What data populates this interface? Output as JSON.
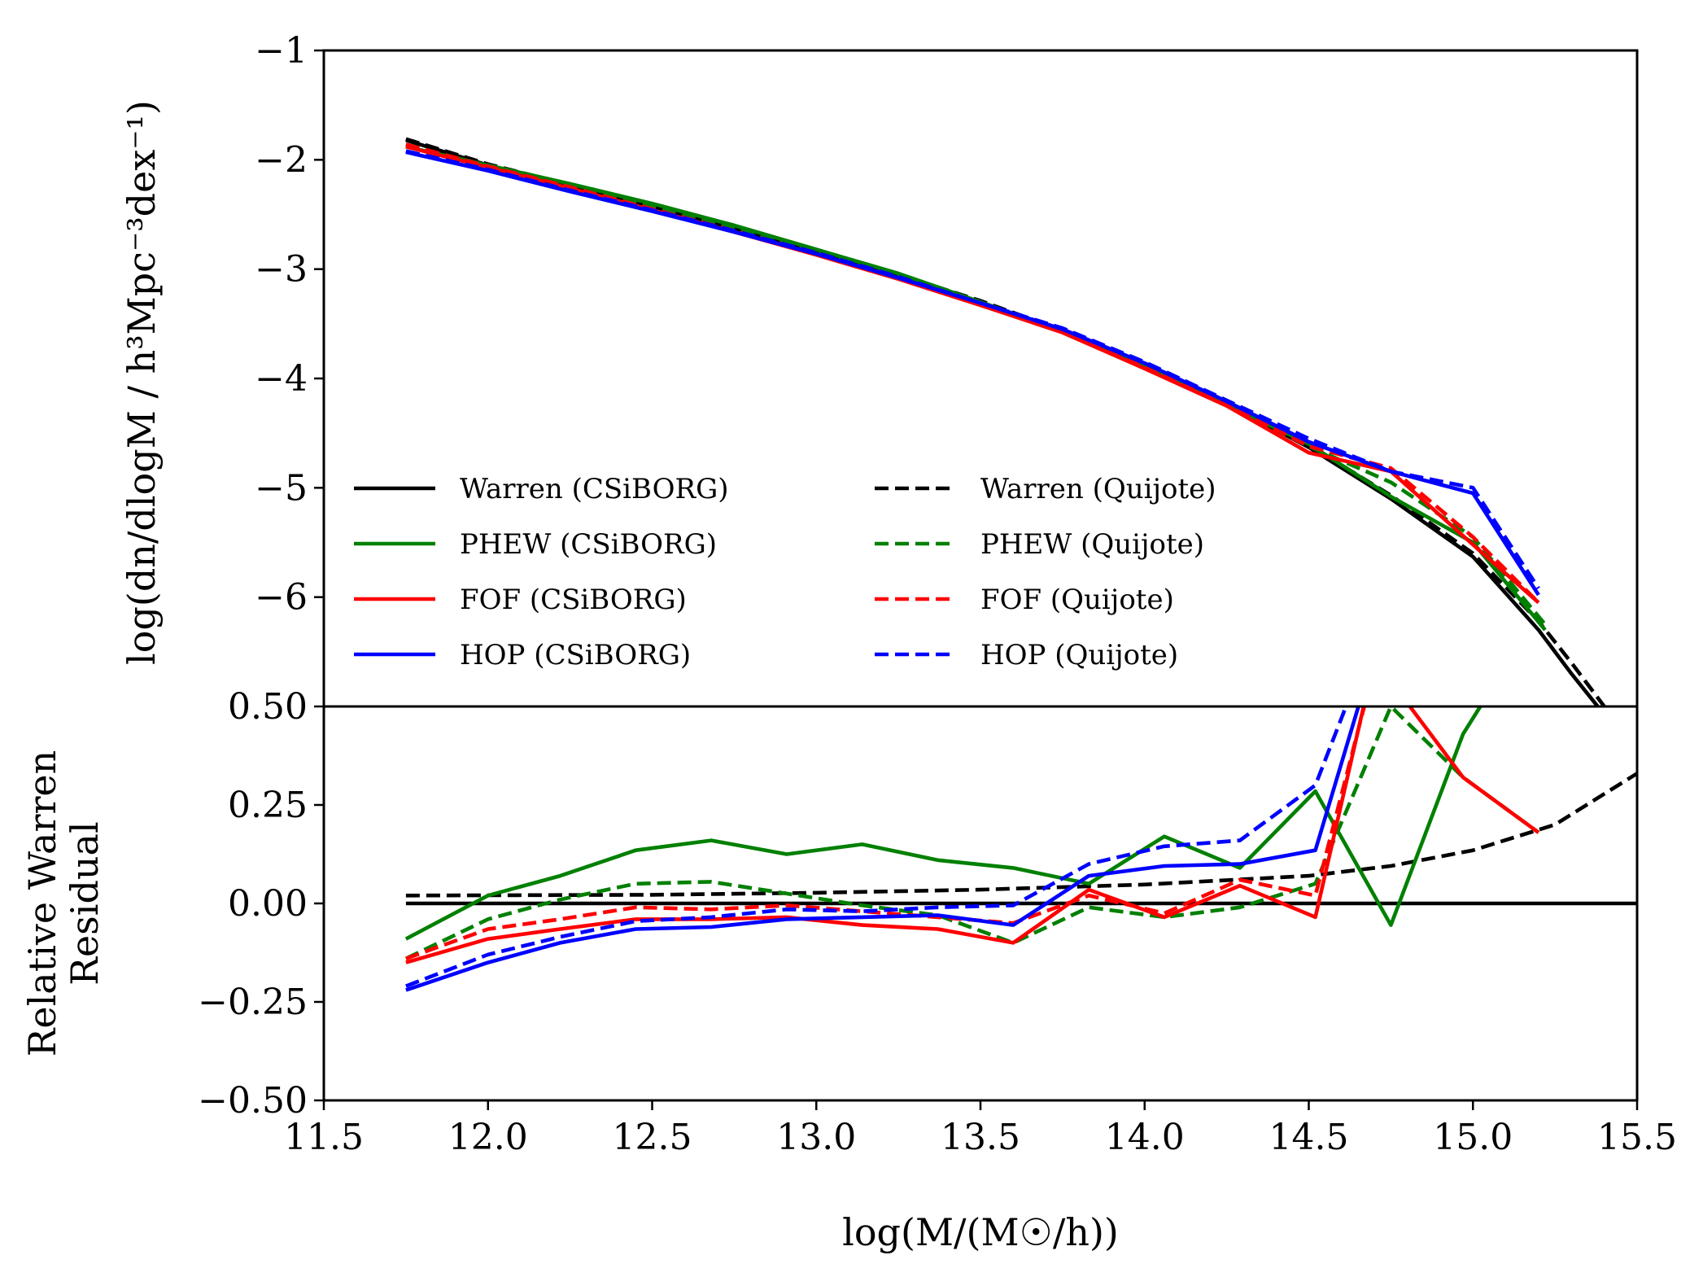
{
  "chart_data": [
    {
      "type": "line",
      "panel": "top",
      "title": "",
      "xlabel": "",
      "ylabel": "log(dn/dlogM / h³Mpc⁻³dex⁻¹)",
      "xlim": [
        11.5,
        15.5
      ],
      "ylim": [
        -7,
        -1
      ],
      "yticks": [
        -6,
        -5,
        -4,
        -3,
        -2,
        -1
      ],
      "ytick_labels": [
        "−6",
        "−5",
        "−4",
        "−3",
        "−2",
        "−1"
      ],
      "legend_position": "lower-left",
      "series": [
        {
          "name": "Warren (CSiBORG)",
          "color": "#000000",
          "dash": "solid",
          "x": [
            11.75,
            12.0,
            12.25,
            12.5,
            12.75,
            13.0,
            13.25,
            13.5,
            13.75,
            14.0,
            14.25,
            14.5,
            14.75,
            15.0,
            15.2,
            15.3,
            15.38
          ],
          "y": [
            -1.82,
            -2.05,
            -2.24,
            -2.43,
            -2.63,
            -2.84,
            -3.06,
            -3.3,
            -3.57,
            -3.88,
            -4.23,
            -4.63,
            -5.1,
            -5.63,
            -6.3,
            -6.7,
            -7.0
          ]
        },
        {
          "name": "Warren (Quijote)",
          "color": "#000000",
          "dash": "dashed",
          "x": [
            11.75,
            12.0,
            12.25,
            12.5,
            12.75,
            13.0,
            13.25,
            13.5,
            13.75,
            14.0,
            14.25,
            14.5,
            14.75,
            15.0,
            15.2,
            15.3,
            15.4
          ],
          "y": [
            -1.81,
            -2.04,
            -2.23,
            -2.42,
            -2.62,
            -2.83,
            -3.05,
            -3.29,
            -3.56,
            -3.87,
            -4.22,
            -4.61,
            -5.07,
            -5.6,
            -6.22,
            -6.6,
            -7.0
          ]
        },
        {
          "name": "PHEW (CSiBORG)",
          "color": "#008000",
          "dash": "solid",
          "x": [
            11.75,
            12.0,
            12.25,
            12.5,
            12.75,
            13.0,
            13.25,
            13.5,
            13.75,
            14.0,
            14.25,
            14.5,
            14.75,
            15.0,
            15.22
          ],
          "y": [
            -1.88,
            -2.05,
            -2.22,
            -2.4,
            -2.6,
            -2.82,
            -3.04,
            -3.3,
            -3.57,
            -3.88,
            -4.24,
            -4.6,
            -5.08,
            -5.5,
            -6.3
          ]
        },
        {
          "name": "PHEW (Quijote)",
          "color": "#008000",
          "dash": "dashed",
          "x": [
            11.75,
            12.0,
            12.25,
            12.5,
            12.75,
            13.0,
            13.25,
            13.5,
            13.75,
            14.0,
            14.25,
            14.5,
            14.75,
            15.0,
            15.22
          ],
          "y": [
            -1.86,
            -2.06,
            -2.24,
            -2.42,
            -2.62,
            -2.84,
            -3.06,
            -3.32,
            -3.57,
            -3.89,
            -4.24,
            -4.62,
            -4.95,
            -5.45,
            -6.25
          ]
        },
        {
          "name": "FOF (CSiBORG)",
          "color": "#ff0000",
          "dash": "solid",
          "x": [
            11.75,
            12.0,
            12.25,
            12.5,
            12.75,
            13.0,
            13.25,
            13.5,
            13.75,
            14.0,
            14.25,
            14.5,
            14.75,
            15.0,
            15.2
          ],
          "y": [
            -1.88,
            -2.07,
            -2.26,
            -2.46,
            -2.66,
            -2.87,
            -3.09,
            -3.33,
            -3.58,
            -3.91,
            -4.25,
            -4.68,
            -4.85,
            -5.52,
            -6.05
          ]
        },
        {
          "name": "FOF (Quijote)",
          "color": "#ff0000",
          "dash": "dashed",
          "x": [
            11.75,
            12.0,
            12.25,
            12.5,
            12.75,
            13.0,
            13.25,
            13.5,
            13.75,
            14.0,
            14.25,
            14.5,
            14.75,
            15.0,
            15.2
          ],
          "y": [
            -1.86,
            -2.06,
            -2.25,
            -2.45,
            -2.65,
            -2.86,
            -3.08,
            -3.33,
            -3.57,
            -3.9,
            -4.24,
            -4.62,
            -4.82,
            -5.45,
            -6.05
          ]
        },
        {
          "name": "HOP (CSiBORG)",
          "color": "#0000ff",
          "dash": "solid",
          "x": [
            11.75,
            12.0,
            12.25,
            12.5,
            12.75,
            13.0,
            13.25,
            13.5,
            13.75,
            14.0,
            14.25,
            14.5,
            14.75,
            15.0,
            15.2
          ],
          "y": [
            -1.93,
            -2.1,
            -2.29,
            -2.47,
            -2.66,
            -2.86,
            -3.08,
            -3.31,
            -3.55,
            -3.86,
            -4.21,
            -4.58,
            -4.85,
            -5.05,
            -5.98
          ]
        },
        {
          "name": "HOP (Quijote)",
          "color": "#0000ff",
          "dash": "dashed",
          "x": [
            11.75,
            12.0,
            12.25,
            12.5,
            12.75,
            13.0,
            13.25,
            13.5,
            13.75,
            14.0,
            14.25,
            14.5,
            14.75,
            15.0,
            15.2
          ],
          "y": [
            -1.92,
            -2.09,
            -2.28,
            -2.46,
            -2.65,
            -2.85,
            -3.07,
            -3.31,
            -3.54,
            -3.85,
            -4.2,
            -4.55,
            -4.85,
            -5.0,
            -5.92
          ]
        }
      ]
    },
    {
      "type": "line",
      "panel": "bottom",
      "title": "",
      "xlabel": "log(M/(M☉/h))",
      "ylabel": [
        "Relative Warren",
        "Residual"
      ],
      "xlim": [
        11.5,
        15.5
      ],
      "ylim": [
        -0.5,
        0.5
      ],
      "xticks": [
        11.5,
        12.0,
        12.5,
        13.0,
        13.5,
        14.0,
        14.5,
        15.0,
        15.5
      ],
      "xtick_labels": [
        "11.5",
        "12.0",
        "12.5",
        "13.0",
        "13.5",
        "14.0",
        "14.5",
        "15.0",
        "15.5"
      ],
      "yticks": [
        -0.5,
        -0.25,
        0.0,
        0.25,
        0.5
      ],
      "ytick_labels": [
        "−0.50",
        "−0.25",
        "0.00",
        "0.25",
        "0.50"
      ],
      "series": [
        {
          "name": "Warren (CSiBORG)",
          "color": "#000000",
          "dash": "solid",
          "x": [
            11.75,
            15.5
          ],
          "y": [
            0.0,
            0.0
          ]
        },
        {
          "name": "Warren (Quijote)",
          "color": "#000000",
          "dash": "dashed",
          "x": [
            11.75,
            12.5,
            13.0,
            13.5,
            14.0,
            14.5,
            14.75,
            15.0,
            15.25,
            15.5
          ],
          "y": [
            0.02,
            0.022,
            0.027,
            0.035,
            0.048,
            0.07,
            0.095,
            0.135,
            0.2,
            0.33
          ]
        },
        {
          "name": "PHEW (CSiBORG)",
          "color": "#008000",
          "dash": "solid",
          "x": [
            11.75,
            12.0,
            12.22,
            12.45,
            12.68,
            12.91,
            13.14,
            13.37,
            13.6,
            13.83,
            14.06,
            14.29,
            14.52,
            14.75,
            14.97,
            15.06
          ],
          "y": [
            -0.09,
            0.02,
            0.07,
            0.135,
            0.16,
            0.125,
            0.15,
            0.11,
            0.09,
            0.05,
            0.17,
            0.09,
            0.285,
            -0.055,
            0.43,
            0.55
          ]
        },
        {
          "name": "PHEW (Quijote)",
          "color": "#008000",
          "dash": "dashed",
          "x": [
            11.75,
            12.0,
            12.22,
            12.45,
            12.68,
            12.91,
            13.14,
            13.37,
            13.6,
            13.83,
            14.06,
            14.29,
            14.52,
            14.75,
            14.97,
            15.2
          ],
          "y": [
            -0.14,
            -0.04,
            0.01,
            0.05,
            0.055,
            0.025,
            -0.005,
            -0.03,
            -0.1,
            -0.01,
            -0.035,
            -0.01,
            0.05,
            0.5,
            0.32,
            0.18
          ]
        },
        {
          "name": "FOF (CSiBORG)",
          "color": "#ff0000",
          "dash": "solid",
          "x": [
            11.75,
            12.0,
            12.22,
            12.45,
            12.68,
            12.91,
            13.14,
            13.37,
            13.6,
            13.83,
            14.06,
            14.29,
            14.52,
            14.7,
            14.97,
            15.2
          ],
          "y": [
            -0.15,
            -0.09,
            -0.065,
            -0.04,
            -0.04,
            -0.035,
            -0.055,
            -0.065,
            -0.1,
            0.035,
            -0.035,
            0.045,
            -0.035,
            0.62,
            0.32,
            0.18
          ]
        },
        {
          "name": "FOF (Quijote)",
          "color": "#ff0000",
          "dash": "dashed",
          "x": [
            11.75,
            12.0,
            12.22,
            12.45,
            12.68,
            12.91,
            13.14,
            13.37,
            13.6,
            13.83,
            14.06,
            14.29,
            14.52,
            14.7
          ],
          "y": [
            -0.14,
            -0.065,
            -0.04,
            -0.01,
            -0.015,
            -0.005,
            -0.02,
            -0.035,
            -0.05,
            0.02,
            -0.025,
            0.06,
            0.02,
            0.6
          ]
        },
        {
          "name": "HOP (CSiBORG)",
          "color": "#0000ff",
          "dash": "solid",
          "x": [
            11.75,
            12.0,
            12.22,
            12.45,
            12.68,
            12.91,
            13.14,
            13.37,
            13.6,
            13.83,
            14.06,
            14.29,
            14.52,
            14.68
          ],
          "y": [
            -0.22,
            -0.15,
            -0.1,
            -0.065,
            -0.06,
            -0.04,
            -0.035,
            -0.03,
            -0.055,
            0.07,
            0.095,
            0.1,
            0.135,
            0.58
          ]
        },
        {
          "name": "HOP (Quijote)",
          "color": "#0000ff",
          "dash": "dashed",
          "x": [
            11.75,
            12.0,
            12.22,
            12.45,
            12.68,
            12.91,
            13.14,
            13.37,
            13.6,
            13.83,
            14.06,
            14.29,
            14.52,
            14.66
          ],
          "y": [
            -0.21,
            -0.13,
            -0.085,
            -0.045,
            -0.035,
            -0.015,
            -0.02,
            -0.01,
            -0.005,
            0.1,
            0.145,
            0.16,
            0.3,
            0.6
          ]
        }
      ]
    }
  ],
  "legend": {
    "columns": [
      [
        "Warren (CSiBORG)",
        "PHEW (CSiBORG)",
        "FOF (CSiBORG)",
        "HOP (CSiBORG)"
      ],
      [
        "Warren (Quijote)",
        "PHEW (Quijote)",
        "FOF (Quijote)",
        "HOP (Quijote)"
      ]
    ]
  }
}
